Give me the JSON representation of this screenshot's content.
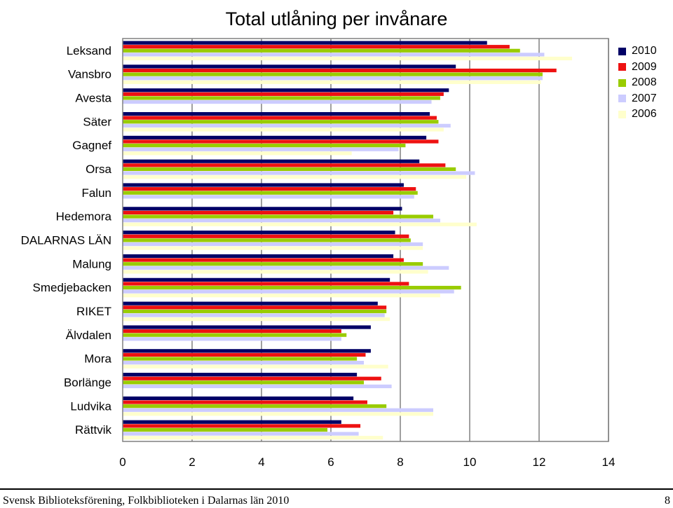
{
  "chart_data": {
    "type": "bar",
    "orientation": "horizontal",
    "title": "Total utlåning per invånare",
    "categories": [
      "Leksand",
      "Vansbro",
      "Avesta",
      "Säter",
      "Gagnef",
      "Orsa",
      "Falun",
      "Hedemora",
      "DALARNAS LÄN",
      "Malung",
      "Smedjebacken",
      "RIKET",
      "Älvdalen",
      "Mora",
      "Borlänge",
      "Ludvika",
      "Rättvik"
    ],
    "series": [
      {
        "name": "2010",
        "color": "#000066",
        "values": [
          10.5,
          9.6,
          9.4,
          8.85,
          8.75,
          8.55,
          8.1,
          8.05,
          7.85,
          7.8,
          7.7,
          7.35,
          7.15,
          7.15,
          6.75,
          6.65,
          6.3
        ]
      },
      {
        "name": "2009",
        "color": "#ee1111",
        "values": [
          11.15,
          12.5,
          9.25,
          9.05,
          9.1,
          9.3,
          8.45,
          7.8,
          8.25,
          8.1,
          8.25,
          7.6,
          6.3,
          7.0,
          7.45,
          7.05,
          6.85
        ]
      },
      {
        "name": "2008",
        "color": "#99cc00",
        "values": [
          11.45,
          12.1,
          9.15,
          9.1,
          8.15,
          9.6,
          8.5,
          8.95,
          8.3,
          8.65,
          9.75,
          7.6,
          6.45,
          6.75,
          6.95,
          7.6,
          5.9
        ]
      },
      {
        "name": "2007",
        "color": "#ccccff",
        "values": [
          12.15,
          12.1,
          8.9,
          9.45,
          7.95,
          10.15,
          8.4,
          9.15,
          8.65,
          9.4,
          9.55,
          7.55,
          6.3,
          6.95,
          7.75,
          8.95,
          6.8
        ]
      },
      {
        "name": "2006",
        "color": "#ffffcc",
        "values": [
          12.95,
          12.05,
          0,
          9.25,
          6.6,
          9.9,
          0,
          10.2,
          8.65,
          8.8,
          9.15,
          7.7,
          0,
          7.65,
          0,
          8.95,
          7.5
        ]
      }
    ],
    "xlim": [
      0,
      14
    ],
    "xticks": [
      "0",
      "2",
      "4",
      "6",
      "8",
      "10",
      "12",
      "14"
    ],
    "grid": true,
    "legend_position": "right"
  },
  "footer": {
    "text": "Svensk Biblioteksförening, Folkbiblioteken i Dalarnas län 2010",
    "page_number": "8"
  }
}
